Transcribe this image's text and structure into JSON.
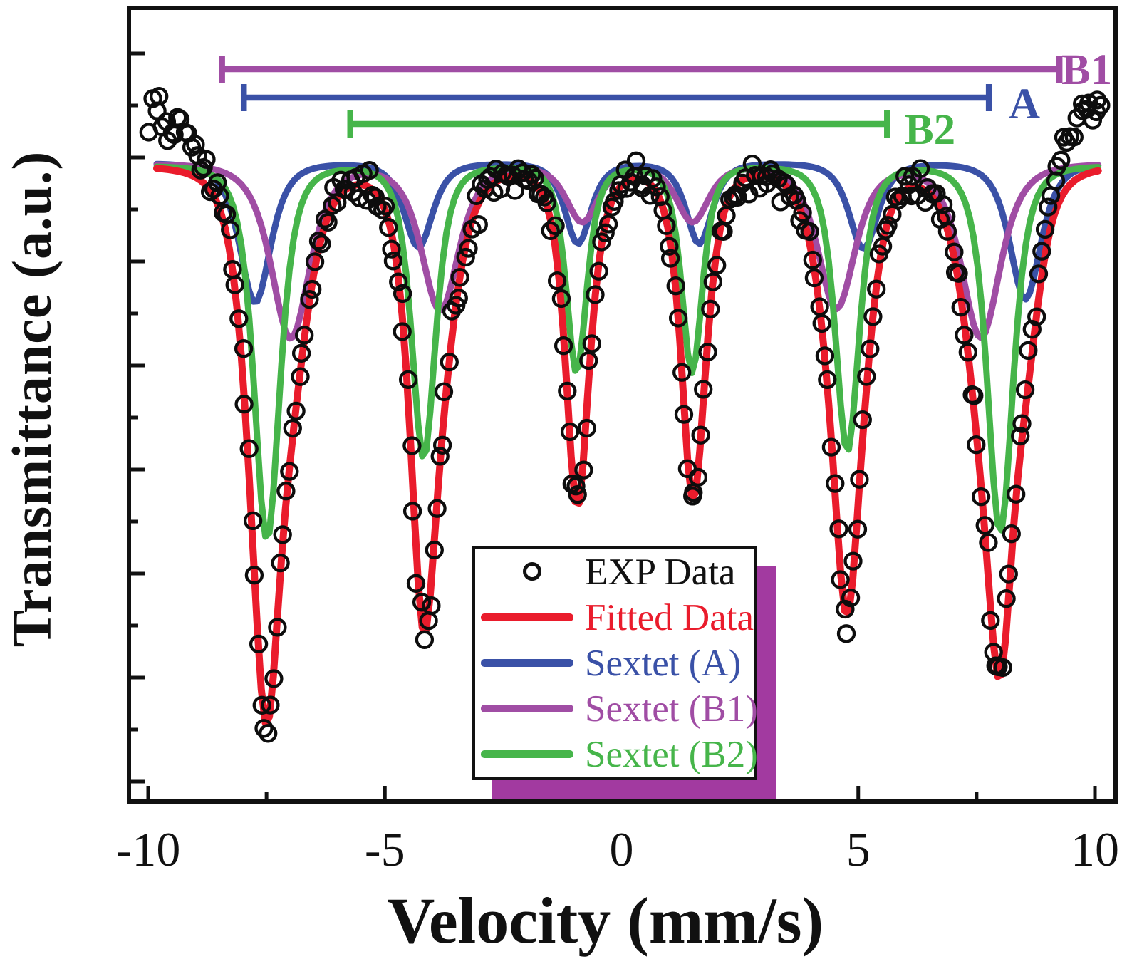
{
  "figure": {
    "background": "#ffffff"
  },
  "y_axis": {
    "title": "Transmittance (a.u.)"
  },
  "x_axis": {
    "title": "Velocity (mm/s)",
    "tick_values": [
      -10,
      -5,
      0,
      5,
      10
    ],
    "tick_labels": [
      "-10",
      "-5",
      "0",
      "5",
      "10"
    ],
    "minor_tick_values": [
      -7.5,
      -2.5,
      2.5,
      7.5
    ]
  },
  "annotations": {
    "bars": [
      {
        "label": "B1",
        "color": "#A04DA4",
        "v_start": -8.44,
        "v_end": 9.25
      },
      {
        "label": "A",
        "color": "#3A51A7",
        "v_start": -7.98,
        "v_end": 7.76
      },
      {
        "label": "B2",
        "color": "#46B54A",
        "v_start": -5.73,
        "v_end": 5.61
      }
    ]
  },
  "legend": {
    "border_color": "#111111",
    "shadow_color": "#A23AA0",
    "items": [
      {
        "label": "EXP Data",
        "marker": "circle",
        "color": "#111111"
      },
      {
        "label": "Fitted Data",
        "marker": "line",
        "color": "#EA1C2C"
      },
      {
        "label": "Sextet (A)",
        "marker": "line",
        "color": "#3A51A7"
      },
      {
        "label": "Sextet (B1)",
        "marker": "line",
        "color": "#A04DA4"
      },
      {
        "label": "Sextet (B2)",
        "marker": "line",
        "color": "#46B54A"
      }
    ]
  },
  "chart_data": {
    "type": "line",
    "title": "Mossbauer transmission spectrum fitted with three magnetic sextets",
    "xlabel": "Velocity (mm/s)",
    "ylabel": "Transmittance (a.u.)",
    "x_range": [
      -10.45,
      10.48
    ],
    "y_axis_numeric_labels": false,
    "grid": false,
    "legend_position": "lower-center-right",
    "baseline_transmittance": 1.0,
    "absorption_profile": "squared-lorentzian",
    "fitted_curve_minima_velocities": [
      -7.5,
      -4.2,
      -0.97,
      1.5,
      4.7,
      7.95
    ],
    "fitted_curve_minima_depths": [
      1.0,
      0.84,
      0.61,
      0.6,
      0.81,
      0.92
    ],
    "series": [
      {
        "name": "EXP Data",
        "role": "scatter",
        "color": "#111111",
        "derived_from": "Fitted Data",
        "point_step_mm_s": 0.0673,
        "noise_sigma": 0.0167,
        "edge_rise": {
          "amplitude_left": 0.099,
          "amplitude_right": 0.108,
          "width_mm_s": 1.35,
          "center_abs_v": 10.15
        }
      },
      {
        "name": "Fitted Data",
        "role": "envelope-sum-of-sextets",
        "color": "#EA1C2C"
      },
      {
        "name": "Sextet (A)",
        "color": "#3A51A7",
        "line_positions": [
          -7.74,
          -4.29,
          -0.92,
          1.64,
          5.11,
          8.53
        ],
        "line_depths": [
          0.251,
          0.151,
          0.145,
          0.145,
          0.154,
          0.245
        ],
        "line_widths": [
          0.6,
          0.55,
          0.5,
          0.5,
          0.55,
          0.6
        ]
      },
      {
        "name": "Sextet (B1)",
        "color": "#A04DA4",
        "line_positions": [
          -6.99,
          -3.83,
          -0.83,
          1.5,
          4.54,
          7.59
        ],
        "line_depths": [
          0.314,
          0.264,
          0.104,
          0.104,
          0.26,
          0.313
        ],
        "line_widths": [
          0.75,
          0.72,
          0.62,
          0.62,
          0.72,
          0.75
        ]
      },
      {
        "name": "Sextet (B2)",
        "color": "#46B54A",
        "line_positions": [
          -7.49,
          -4.18,
          -0.95,
          1.49,
          4.77,
          8.0
        ],
        "line_depths": [
          0.673,
          0.526,
          0.372,
          0.372,
          0.514,
          0.66
        ],
        "line_widths": [
          0.5,
          0.46,
          0.4,
          0.4,
          0.46,
          0.5
        ]
      }
    ]
  }
}
